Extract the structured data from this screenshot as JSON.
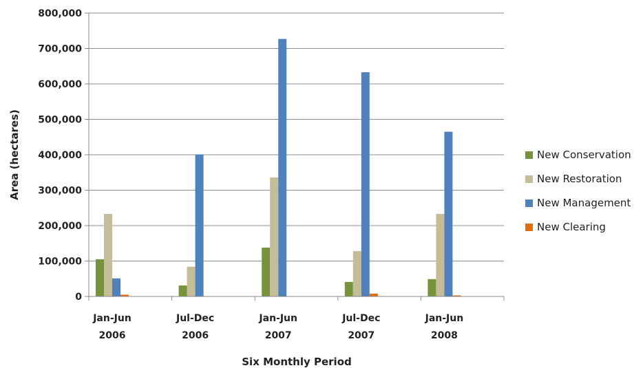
{
  "chart_data": {
    "type": "bar",
    "xlabel": "Six Monthly Period",
    "ylabel": "Area (hectares)",
    "ylim": [
      0,
      800000
    ],
    "yticks": [
      "800,000",
      "700,000",
      "600,000",
      "500,000",
      "400,000",
      "300,000",
      "200,000",
      "100,000",
      "0"
    ],
    "ytick_values": [
      800000,
      700000,
      600000,
      500000,
      400000,
      300000,
      200000,
      100000,
      0
    ],
    "categories": [
      {
        "line1": "Jan-Jun",
        "line2": "2006"
      },
      {
        "line1": "Jul-Dec",
        "line2": "2006"
      },
      {
        "line1": "Jan-Jun",
        "line2": "2007"
      },
      {
        "line1": "Jul-Dec",
        "line2": "2007"
      },
      {
        "line1": "Jan-Jun",
        "line2": "2008"
      }
    ],
    "grid": true,
    "legend_position": "right",
    "series": [
      {
        "name": "New Conservation",
        "color": "#77933c",
        "values": [
          105000,
          31000,
          138000,
          41000,
          49000
        ]
      },
      {
        "name": "New Restoration",
        "color": "#c4bd97",
        "values": [
          233000,
          84000,
          336000,
          128000,
          233000
        ]
      },
      {
        "name": "New Management",
        "color": "#4f81bd",
        "values": [
          51000,
          401000,
          727000,
          633000,
          465000
        ]
      },
      {
        "name": "New Clearing",
        "color": "#e46c0a",
        "values": [
          5000,
          0,
          0,
          8000,
          3000
        ]
      }
    ]
  }
}
